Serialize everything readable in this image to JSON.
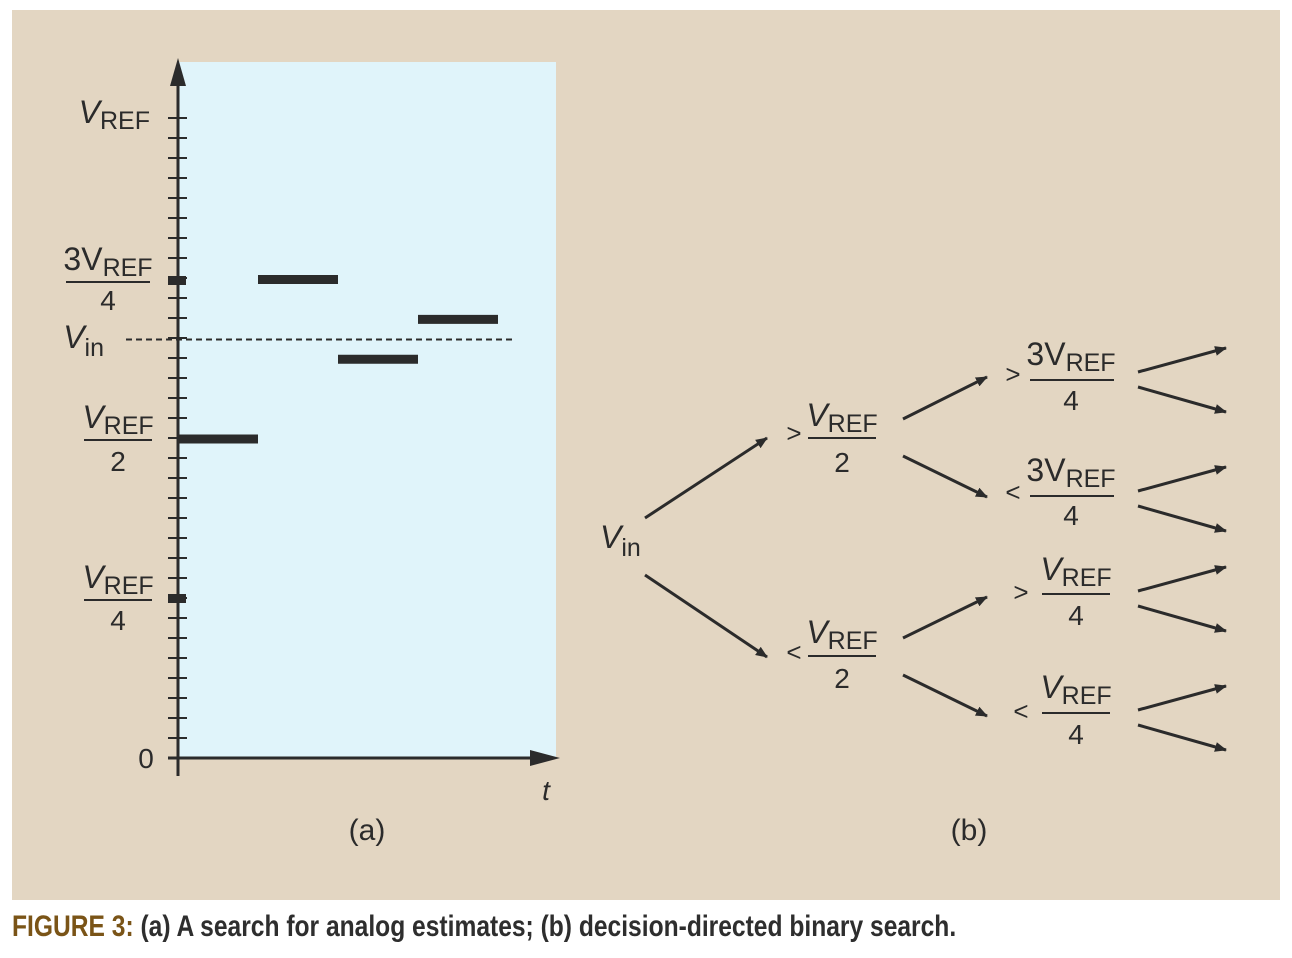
{
  "panel_a": {
    "axis": {
      "y_ticks": [
        {
          "num": "V",
          "sub": "REF",
          "den": ""
        },
        {
          "num": "3V",
          "sub": "REF",
          "den": "4"
        },
        {
          "num": "V",
          "sub": "in",
          "den": ""
        },
        {
          "num": "V",
          "sub": "REF",
          "den": "2"
        },
        {
          "num": "V",
          "sub": "REF",
          "den": "4"
        }
      ],
      "zero": "0",
      "x_label": "t"
    },
    "steps": [
      0.5,
      0.75,
      0.625,
      0.6875
    ],
    "vin_level": 0.656,
    "label": "(a)"
  },
  "panel_b": {
    "root": {
      "num": "V",
      "sub": "in"
    },
    "level1": [
      {
        "op": ">",
        "num": "V",
        "sub": "REF",
        "den": "2"
      },
      {
        "op": "<",
        "num": "V",
        "sub": "REF",
        "den": "2"
      }
    ],
    "level2": [
      {
        "op": ">",
        "num": "3V",
        "sub": "REF",
        "den": "4"
      },
      {
        "op": "<",
        "num": "3V",
        "sub": "REF",
        "den": "4"
      },
      {
        "op": ">",
        "num": "V",
        "sub": "REF",
        "den": "4"
      },
      {
        "op": "<",
        "num": "V",
        "sub": "REF",
        "den": "4"
      }
    ],
    "label": "(b)"
  },
  "caption": {
    "label": "FIGURE 3:",
    "text": " (a) A search for analog estimates; (b) decision-directed binary search."
  },
  "colors": {
    "background": "#e3d6c2",
    "plot_area": "#e0f4fa",
    "ink": "#2b2b2b",
    "caption_label": "#7a5417"
  }
}
